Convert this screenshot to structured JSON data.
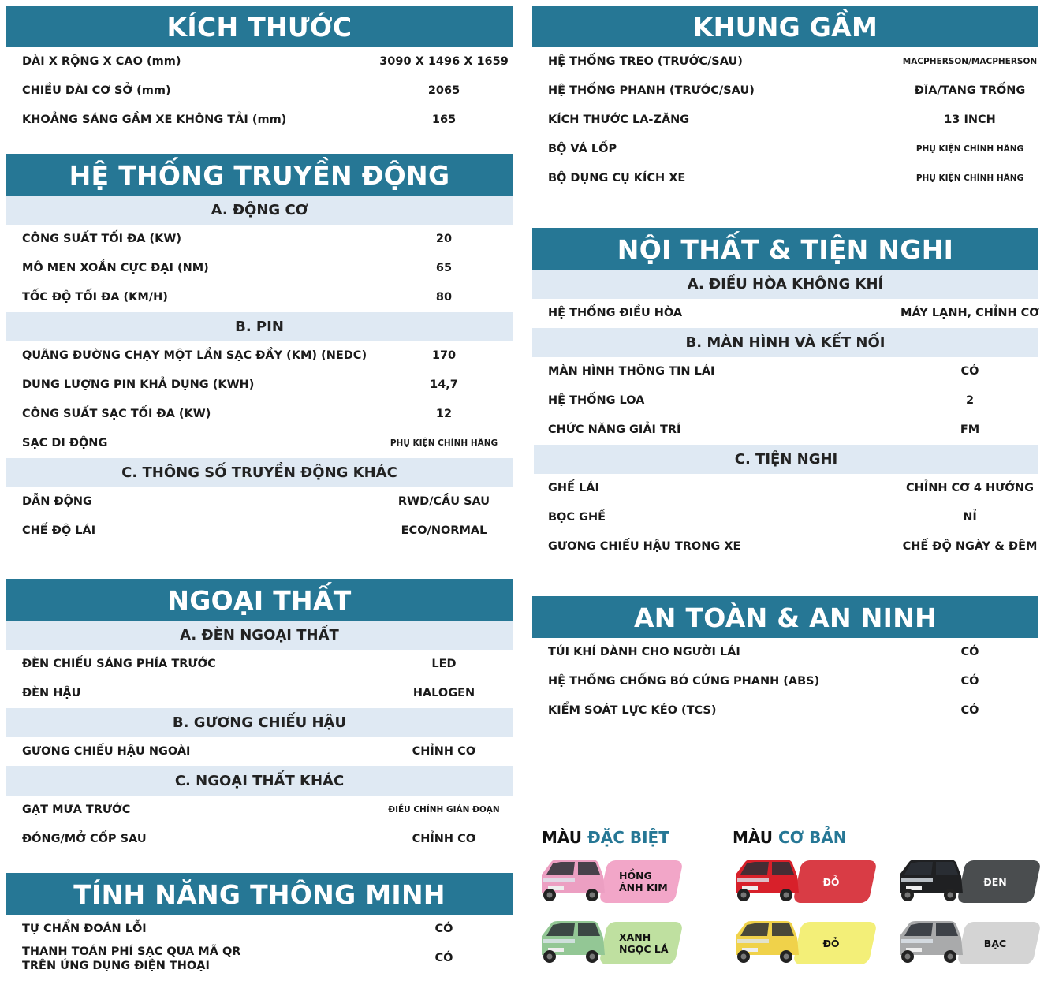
{
  "left": [
    {
      "title": "KÍCH THƯỚC",
      "groups": [
        {
          "sub": null,
          "rows": [
            {
              "label": "DÀI X RỘNG X CAO (mm)",
              "value": "3090 X 1496 X 1659"
            },
            {
              "label": "CHIỀU DÀI CƠ SỞ (mm)",
              "value": "2065"
            },
            {
              "label": "KHOẢNG SÁNG GẦM XE KHÔNG TẢI (mm)",
              "value": "165"
            }
          ]
        }
      ]
    },
    {
      "title": "HỆ THỐNG TRUYỀN ĐỘNG",
      "groups": [
        {
          "sub": "A. ĐỘNG CƠ",
          "rows": [
            {
              "label": "CÔNG SUẤT TỐI ĐA (KW)",
              "value": "20"
            },
            {
              "label": "MÔ MEN XOẮN CỰC ĐẠI (NM)",
              "value": "65"
            },
            {
              "label": "TỐC ĐỘ TỐI ĐA (KM/H)",
              "value": "80"
            }
          ]
        },
        {
          "sub": "B. PIN",
          "rows": [
            {
              "label": "QUÃNG ĐƯỜNG CHẠY MỘT LẦN SẠC ĐẦY (KM) (NEDC)",
              "value": "170"
            },
            {
              "label": "DUNG LƯỢNG PIN KHẢ DỤNG (KWH)",
              "value": "14,7"
            },
            {
              "label": "CÔNG SUẤT SẠC TỐI ĐA (KW)",
              "value": "12"
            },
            {
              "label": "SẠC DI ĐỘNG",
              "value": "PHỤ KIỆN CHÍNH HÃNG"
            }
          ]
        },
        {
          "sub": "C. THÔNG SỐ TRUYỀN ĐỘNG KHÁC",
          "rows": [
            {
              "label": "DẪN ĐỘNG",
              "value": "RWD/CẦU SAU"
            },
            {
              "label": "CHẾ ĐỘ LÁI",
              "value": "ECO/NORMAL"
            }
          ]
        }
      ]
    },
    {
      "title": "NGOẠI THẤT",
      "groups": [
        {
          "sub": "A. ĐÈN NGOẠI THẤT",
          "rows": [
            {
              "label": "ĐÈN CHIẾU SÁNG PHÍA TRƯỚC",
              "value": "LED"
            },
            {
              "label": "ĐÈN HẬU",
              "value": "HALOGEN"
            }
          ]
        },
        {
          "sub": "B. GƯƠNG CHIẾU HẬU",
          "rows": [
            {
              "label": "GƯƠNG CHIẾU HẬU NGOÀI",
              "value": "CHỈNH CƠ"
            }
          ]
        },
        {
          "sub": "C. NGOẠI THẤT KHÁC",
          "rows": [
            {
              "label": "GẠT MƯA TRƯỚC",
              "value": "ĐIỀU CHỈNH GIÁN ĐOẠN"
            },
            {
              "label": "ĐÓNG/MỞ CỐP SAU",
              "value": "CHỈNH CƠ"
            }
          ]
        }
      ]
    },
    {
      "title": "TÍNH NĂNG THÔNG MINH",
      "groups": [
        {
          "sub": null,
          "rows": [
            {
              "label": "TỰ CHẨN ĐOÁN LỖI",
              "value": "CÓ"
            },
            {
              "label": "THANH TOÁN PHÍ SẠC QUA MÃ QR\nTRÊN ỨNG DỤNG ĐIỆN THOẠI",
              "value": "CÓ"
            }
          ]
        }
      ]
    }
  ],
  "right": [
    {
      "title": "KHUNG GẦM",
      "groups": [
        {
          "sub": null,
          "rows": [
            {
              "label": "HỆ THỐNG TREO (TRƯỚC/SAU)",
              "value": "MACPHERSON/MACPHERSON"
            },
            {
              "label": "HỆ THỐNG PHANH (TRƯỚC/SAU)",
              "value": "ĐĨA/TANG TRỐNG"
            },
            {
              "label": "KÍCH THƯỚC LA-ZĂNG",
              "value": "13 INCH"
            },
            {
              "label": "BỘ VÁ LỐP",
              "value": "PHỤ KIỆN CHÍNH HÃNG"
            },
            {
              "label": "BỘ DỤNG CỤ KÍCH XE",
              "value": "PHỤ KIỆN CHÍNH HÃNG"
            }
          ]
        }
      ]
    },
    {
      "title": "NỘI THẤT & TIỆN NGHI",
      "groups": [
        {
          "sub": "A. ĐIỀU HÒA KHÔNG KHÍ",
          "rows": [
            {
              "label": "HỆ THỐNG ĐIỀU HÒA",
              "value": "MÁY LẠNH, CHỈNH CƠ"
            }
          ]
        },
        {
          "sub": "B. MÀN HÌNH VÀ KẾT NỐI",
          "rows": [
            {
              "label": "MÀN HÌNH THÔNG TIN LÁI",
              "value": "CÓ"
            },
            {
              "label": "HỆ THỐNG LOA",
              "value": "2"
            },
            {
              "label": "CHỨC NĂNG GIẢI TRÍ",
              "value": "FM"
            }
          ]
        },
        {
          "sub": "C. TIỆN NGHI",
          "rows": [
            {
              "label": "GHẾ LÁI",
              "value": "CHỈNH CƠ 4 HƯỚNG"
            },
            {
              "label": "BỌC GHẾ",
              "value": "NỈ"
            },
            {
              "label": "GƯƠNG CHIẾU HẬU TRONG XE",
              "value": "CHẾ ĐỘ NGÀY & ĐÊM"
            }
          ]
        }
      ]
    },
    {
      "title": "AN TOÀN & AN NINH",
      "groups": [
        {
          "sub": null,
          "rows": [
            {
              "label": "TÚI KHÍ DÀNH CHO NGƯỜI LÁI",
              "value": "CÓ"
            },
            {
              "label": "HỆ THỐNG CHỐNG BÓ CỨNG PHANH (ABS)",
              "value": "CÓ"
            },
            {
              "label": "KIỂM SOÁT LỰC KÉO (TCS)",
              "value": "CÓ"
            }
          ]
        }
      ]
    }
  ],
  "colors": {
    "special": {
      "prefix": "MÀU ",
      "accent": "ĐẶC BIỆT",
      "items": [
        {
          "name": "HỒNG\nÁNH KIM",
          "tag": "#f2a6c8",
          "car": "#ec9fc2",
          "text": "#111"
        },
        {
          "name": "XANH\nNGỌC LÁ",
          "tag": "#bfe0a0",
          "car": "#93c795",
          "text": "#111"
        }
      ]
    },
    "basic": {
      "prefix": "MÀU ",
      "accent": "CƠ BẢN",
      "items": [
        {
          "name": "ĐỎ",
          "tag": "#d93c45",
          "car": "#d8202a",
          "text": "#fff"
        },
        {
          "name": "ĐEN",
          "tag": "#4a4d4f",
          "car": "#1f2022",
          "text": "#fff"
        },
        {
          "name": "ĐỎ",
          "tag": "#f3ef78",
          "car": "#f0d24a",
          "text": "#111"
        },
        {
          "name": "BẠC",
          "tag": "#d4d4d4",
          "car": "#a9aaab",
          "text": "#111"
        }
      ]
    },
    "accent_color": "#267795",
    "header_color": "#267795",
    "subheader_color": "#dfe9f3"
  }
}
